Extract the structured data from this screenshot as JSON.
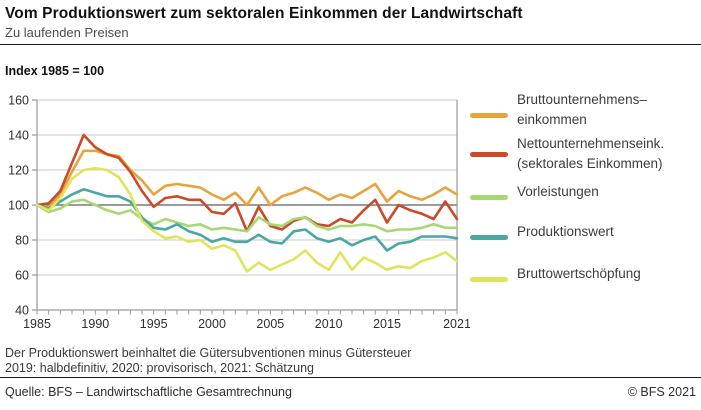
{
  "header": {
    "title": "Vom Produktionswert zum sektoralen Einkommen der Landwirtschaft",
    "subtitle": "Zu laufenden Preisen",
    "index_label": "Index 1985 = 100"
  },
  "chart_data": {
    "type": "line",
    "title": "Vom Produktionswert zum sektoralen Einkommen der Landwirtschaft",
    "xlabel": "",
    "ylabel": "Index 1985 = 100",
    "xlim": [
      1985,
      2021
    ],
    "ylim": [
      40,
      160
    ],
    "grid": true,
    "legend_position": "right",
    "baseline": 100,
    "yticks": [
      40,
      60,
      80,
      100,
      120,
      140,
      160
    ],
    "xticks": [
      1985,
      1990,
      1995,
      2000,
      2005,
      2010,
      2015,
      2021
    ],
    "x": [
      1985,
      1986,
      1987,
      1988,
      1989,
      1990,
      1991,
      1992,
      1993,
      1994,
      1995,
      1996,
      1997,
      1998,
      1999,
      2000,
      2001,
      2002,
      2003,
      2004,
      2005,
      2006,
      2007,
      2008,
      2009,
      2010,
      2011,
      2012,
      2013,
      2014,
      2015,
      2016,
      2017,
      2018,
      2019,
      2020,
      2021
    ],
    "series": [
      {
        "id": "bruttounternehmenseinkommen",
        "name": "Bruttounternehmenseinkommen",
        "color": "#E8A33C",
        "values": [
          100,
          99,
          106,
          119,
          131,
          131,
          129,
          128,
          120,
          114,
          106,
          111,
          112,
          111,
          110,
          106,
          103,
          107,
          100,
          110,
          100,
          105,
          107,
          110,
          107,
          103,
          106,
          104,
          108,
          112,
          102,
          108,
          105,
          103,
          106,
          110,
          106
        ]
      },
      {
        "id": "nettounternehmenseinkommen",
        "name": "Nettounternehmenseink. (sektorales Einkommen)",
        "color": "#CB4A27",
        "values": [
          100,
          101,
          108,
          124,
          140,
          133,
          129,
          127,
          119,
          108,
          99,
          104,
          105,
          103,
          103,
          96,
          95,
          101,
          85,
          99,
          88,
          86,
          91,
          93,
          89,
          88,
          92,
          90,
          97,
          103,
          90,
          100,
          97,
          95,
          92,
          102,
          92
        ]
      },
      {
        "id": "vorleistungen",
        "name": "Vorleistungen",
        "color": "#A7D873",
        "values": [
          100,
          96,
          98,
          102,
          103,
          100,
          97,
          95,
          97,
          92,
          89,
          92,
          90,
          88,
          89,
          86,
          87,
          86,
          85,
          93,
          89,
          88,
          92,
          93,
          88,
          86,
          88,
          88,
          89,
          88,
          85,
          86,
          86,
          87,
          89,
          87,
          87
        ]
      },
      {
        "id": "produktionswert",
        "name": "Produktionswert",
        "color": "#49A8A0",
        "values": [
          100,
          98,
          102,
          106,
          109,
          107,
          105,
          105,
          102,
          93,
          87,
          86,
          89,
          85,
          83,
          79,
          81,
          79,
          79,
          83,
          79,
          78,
          85,
          86,
          81,
          79,
          81,
          77,
          80,
          82,
          74,
          78,
          79,
          82,
          82,
          82,
          81
        ]
      },
      {
        "id": "bruttowertschoepfung",
        "name": "Bruttowertschöpfung",
        "color": "#DEE45C",
        "values": [
          100,
          97,
          104,
          115,
          120,
          121,
          120,
          116,
          106,
          91,
          85,
          81,
          82,
          79,
          80,
          75,
          77,
          74,
          62,
          67,
          63,
          66,
          69,
          74,
          67,
          63,
          73,
          63,
          70,
          67,
          63,
          65,
          64,
          68,
          70,
          73,
          68
        ]
      }
    ]
  },
  "legend": {
    "items": [
      {
        "label": "Bruttounternehmens–\neinkommen",
        "color": "#E8A33C"
      },
      {
        "label": "Nettounternehmenseink.\n(sektorales Einkommen)",
        "color": "#CB4A27"
      },
      {
        "label": "Vorleistungen",
        "color": "#A7D873"
      },
      {
        "label": "Produktionswert",
        "color": "#49A8A0"
      },
      {
        "label": "Bruttowertschöpfung",
        "color": "#DEE45C"
      }
    ]
  },
  "footnotes": {
    "line1": "Der Produktionswert beinhaltet die Gütersubventionen minus Gütersteuer",
    "line2": "2019: halbdefinitiv, 2020: provisorisch, 2021: Schätzung"
  },
  "footer": {
    "source": "Quelle: BFS – Landwirtschaftliche Gesamtrechnung",
    "copyright": "© BFS 2021"
  }
}
